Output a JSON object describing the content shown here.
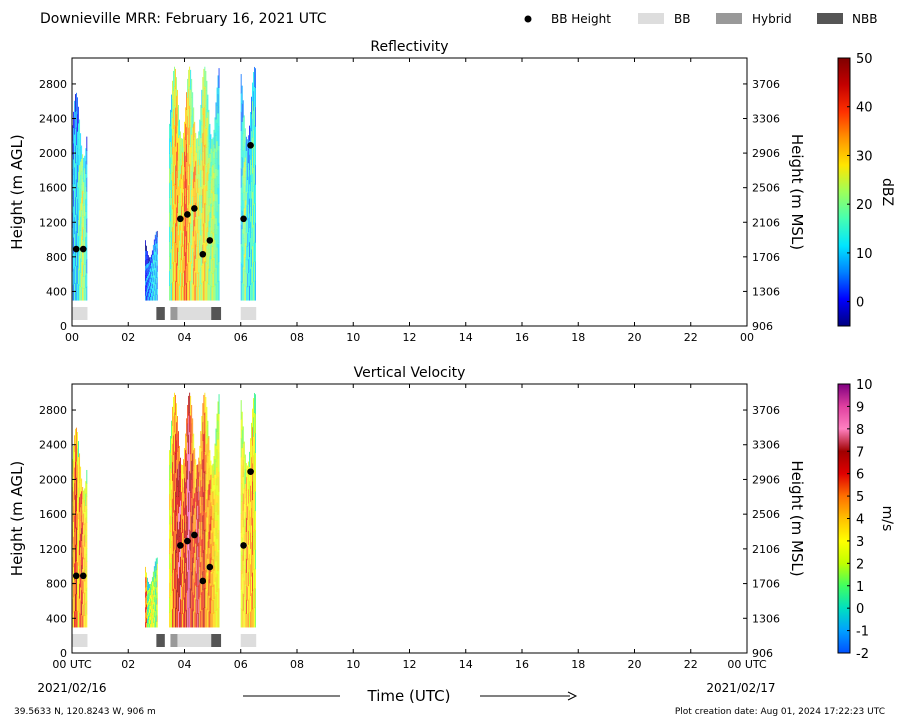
{
  "header": {
    "title": "Downieville MRR:  February 16, 2021 UTC",
    "legend": [
      {
        "label": "BB Height",
        "kind": "dot",
        "color": "#000000"
      },
      {
        "label": "BB",
        "kind": "box",
        "color": "#dddddd"
      },
      {
        "label": "Hybrid",
        "kind": "box",
        "color": "#999999"
      },
      {
        "label": "NBB",
        "kind": "box",
        "color": "#555555"
      }
    ]
  },
  "footer": {
    "location": "39.5633 N, 120.8243 W, 906 m",
    "created": "Plot creation date: Aug 01, 2024 17:22:23 UTC",
    "xlabel": "Time (UTC)",
    "start_date": "2021/02/16",
    "end_date": "2021/02/17"
  },
  "colors": {
    "bb": "#dddddd",
    "hybrid": "#999999",
    "nbb": "#555555",
    "bb_height_dot": "#000000"
  },
  "chart_data": [
    {
      "type": "heatmap",
      "title": "Reflectivity",
      "ylabel": "Height (m AGL)",
      "ylabel_right": "Height (m MSL)",
      "colorbar_label": "dBZ",
      "colorbar_range": [
        -5,
        50
      ],
      "colorbar_ticks": [
        "0",
        "10",
        "20",
        "30",
        "40",
        "50"
      ],
      "colorscale": [
        "#00007f",
        "#0000ff",
        "#0080ff",
        "#00e5ff",
        "#45ffb2",
        "#9dff5a",
        "#ffe600",
        "#ff9400",
        "#ff3000",
        "#c40000",
        "#7f0000"
      ],
      "xlim": [
        0,
        24
      ],
      "ylim": [
        0,
        3100
      ],
      "x_ticks": [
        "00",
        "02",
        "04",
        "06",
        "08",
        "10",
        "12",
        "14",
        "16",
        "18",
        "20",
        "22",
        "00"
      ],
      "y_ticks": [
        0,
        400,
        800,
        1200,
        1600,
        2000,
        2400,
        2800
      ],
      "y_ticks_right": [
        "906",
        "1306",
        "1706",
        "2106",
        "2506",
        "2906",
        "3306",
        "3706"
      ],
      "data_floor": 300,
      "echo_segments": [
        {
          "start": 0.0,
          "end": 0.55,
          "top": 2700,
          "profile": [
            8,
            12,
            10,
            9,
            14,
            18,
            22,
            26,
            20,
            15,
            10
          ]
        },
        {
          "start": 2.6,
          "end": 3.05,
          "top": 1100,
          "profile": [
            3,
            5,
            7,
            9,
            11,
            10,
            8
          ]
        },
        {
          "start": 3.45,
          "end": 5.25,
          "top": 3000,
          "profile": [
            18,
            28,
            34,
            26,
            30,
            38,
            31,
            24,
            33,
            27,
            22,
            30,
            25,
            20,
            24,
            18,
            14
          ]
        },
        {
          "start": 6.0,
          "end": 6.55,
          "top": 3000,
          "profile": [
            12,
            18,
            22,
            16,
            12,
            10,
            14,
            20,
            16,
            11
          ]
        }
      ],
      "bb_height_points": [
        {
          "x": 0.15,
          "y": 890
        },
        {
          "x": 0.4,
          "y": 890
        },
        {
          "x": 3.85,
          "y": 1240
        },
        {
          "x": 4.1,
          "y": 1290
        },
        {
          "x": 4.35,
          "y": 1360
        },
        {
          "x": 4.65,
          "y": 830
        },
        {
          "x": 4.9,
          "y": 990
        },
        {
          "x": 6.1,
          "y": 1240
        },
        {
          "x": 6.35,
          "y": 2090
        }
      ],
      "bb_classification": [
        {
          "start": 0.0,
          "end": 0.55,
          "type": "BB"
        },
        {
          "start": 3.0,
          "end": 3.3,
          "type": "NBB"
        },
        {
          "start": 3.5,
          "end": 3.75,
          "type": "Hybrid"
        },
        {
          "start": 3.75,
          "end": 4.95,
          "type": "BB"
        },
        {
          "start": 4.95,
          "end": 5.3,
          "type": "NBB"
        },
        {
          "start": 6.0,
          "end": 6.55,
          "type": "BB"
        }
      ]
    },
    {
      "type": "heatmap",
      "title": "Vertical Velocity",
      "ylabel": "Height (m AGL)",
      "ylabel_right": "Height (m MSL)",
      "colorbar_label": "m/s",
      "colorbar_range": [
        -2,
        10
      ],
      "colorbar_ticks": [
        "-2",
        "-1",
        "0",
        "1",
        "2",
        "3",
        "4",
        "5",
        "6",
        "7",
        "8",
        "9",
        "10"
      ],
      "colorscale": [
        "#0050ff",
        "#00a0ff",
        "#00e0c0",
        "#40ff60",
        "#c0ff00",
        "#ffff00",
        "#ffc000",
        "#ff7000",
        "#e00000",
        "#a00000",
        "#ff80c0",
        "#e040a0",
        "#800080"
      ],
      "xlim": [
        0,
        24
      ],
      "ylim": [
        0,
        3100
      ],
      "x_ticks": [
        "00 UTC",
        "02",
        "04",
        "06",
        "08",
        "10",
        "12",
        "14",
        "16",
        "18",
        "20",
        "22",
        "00 UTC"
      ],
      "y_ticks": [
        0,
        400,
        800,
        1200,
        1600,
        2000,
        2400,
        2800
      ],
      "y_ticks_right": [
        "906",
        "1306",
        "1706",
        "2106",
        "2506",
        "2906",
        "3306",
        "3706"
      ],
      "data_floor": 300,
      "echo_segments": [
        {
          "start": 0.0,
          "end": 0.55,
          "top": 2600,
          "profile": [
            4,
            5,
            6,
            4,
            3,
            5,
            6,
            5,
            4,
            3,
            3
          ]
        },
        {
          "start": 2.6,
          "end": 3.05,
          "top": 1100,
          "profile": [
            5,
            1,
            2,
            3,
            2,
            1,
            3
          ]
        },
        {
          "start": 3.45,
          "end": 5.25,
          "top": 3000,
          "profile": [
            3,
            5,
            6,
            7,
            5,
            6,
            8,
            6,
            5,
            7,
            5,
            6,
            4,
            5,
            4,
            3,
            3
          ]
        },
        {
          "start": 6.0,
          "end": 6.55,
          "top": 3000,
          "profile": [
            3,
            4,
            3,
            5,
            4,
            3,
            4,
            5,
            3,
            2
          ]
        }
      ],
      "bb_height_points": [
        {
          "x": 0.15,
          "y": 890
        },
        {
          "x": 0.4,
          "y": 890
        },
        {
          "x": 3.85,
          "y": 1240
        },
        {
          "x": 4.1,
          "y": 1290
        },
        {
          "x": 4.35,
          "y": 1360
        },
        {
          "x": 4.65,
          "y": 830
        },
        {
          "x": 4.9,
          "y": 990
        },
        {
          "x": 6.1,
          "y": 1240
        },
        {
          "x": 6.35,
          "y": 2090
        }
      ],
      "bb_classification": [
        {
          "start": 0.0,
          "end": 0.55,
          "type": "BB"
        },
        {
          "start": 3.0,
          "end": 3.3,
          "type": "NBB"
        },
        {
          "start": 3.5,
          "end": 3.75,
          "type": "Hybrid"
        },
        {
          "start": 3.75,
          "end": 4.95,
          "type": "BB"
        },
        {
          "start": 4.95,
          "end": 5.3,
          "type": "NBB"
        },
        {
          "start": 6.0,
          "end": 6.55,
          "type": "BB"
        }
      ]
    }
  ]
}
